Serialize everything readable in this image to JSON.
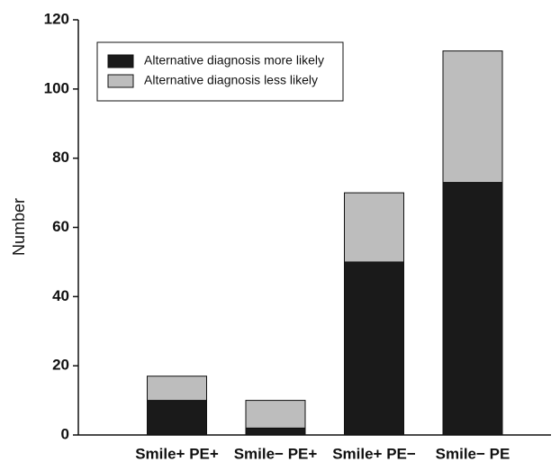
{
  "chart_data": {
    "type": "stacked-bar",
    "y_label": "Number",
    "categories": [
      "Smile+ PE+",
      "Smile− PE+",
      "Smile+ PE−",
      "Smile− PE"
    ],
    "series": [
      {
        "name": "Alternative diagnosis more likely",
        "color": "#1a1a1a",
        "values": [
          10,
          2,
          50,
          73
        ]
      },
      {
        "name": "Alternative diagnosis less likely",
        "color": "#bdbdbd",
        "values": [
          7,
          8,
          20,
          38
        ]
      }
    ],
    "ylim": [
      0,
      120
    ],
    "yticks": [
      0,
      20,
      40,
      60,
      80,
      100,
      120
    ],
    "legend": "upper left"
  }
}
